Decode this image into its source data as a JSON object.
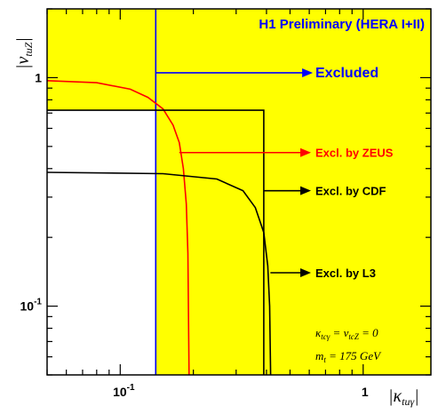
{
  "chart_data": {
    "type": "line",
    "title": "H1 Preliminary (HERA I+II)",
    "xlabel": "|κ_tuγ|",
    "ylabel": "|v_tuZ|",
    "xscale": "log",
    "yscale": "log",
    "xlim": [
      0.05,
      1.9
    ],
    "ylim": [
      0.05,
      2.0
    ],
    "x_tick_labels": [
      {
        "base": "10",
        "exp": "-1",
        "value": 0.1
      },
      {
        "base": "1",
        "exp": "",
        "value": 1
      }
    ],
    "y_tick_labels": [
      {
        "base": "1",
        "exp": "",
        "value": 1
      },
      {
        "base": "10",
        "exp": "-1",
        "value": 0.1
      }
    ],
    "regions": [
      {
        "name": "Excluded",
        "color": "#ffff00"
      }
    ],
    "series": [
      {
        "name": "H1 limit",
        "color": "#0000ff",
        "points": [
          [
            0.14,
            0.05
          ],
          [
            0.14,
            2.0
          ]
        ]
      },
      {
        "name": "ZEUS",
        "color": "#ff0000",
        "points": [
          [
            0.05,
            0.97
          ],
          [
            0.08,
            0.95
          ],
          [
            0.11,
            0.89
          ],
          [
            0.13,
            0.82
          ],
          [
            0.15,
            0.73
          ],
          [
            0.165,
            0.62
          ],
          [
            0.175,
            0.52
          ],
          [
            0.182,
            0.4
          ],
          [
            0.187,
            0.28
          ],
          [
            0.19,
            0.17
          ],
          [
            0.192,
            0.05
          ]
        ]
      },
      {
        "name": "L3",
        "color": "#000000",
        "points": [
          [
            0.05,
            0.72
          ],
          [
            0.39,
            0.72
          ],
          [
            0.39,
            0.05
          ]
        ]
      },
      {
        "name": "CDF",
        "color": "#000000",
        "points": [
          [
            0.05,
            0.385
          ],
          [
            0.15,
            0.38
          ],
          [
            0.25,
            0.36
          ],
          [
            0.32,
            0.32
          ],
          [
            0.36,
            0.27
          ],
          [
            0.39,
            0.21
          ],
          [
            0.405,
            0.15
          ],
          [
            0.412,
            0.1
          ],
          [
            0.416,
            0.05
          ]
        ]
      }
    ],
    "annotations": [
      {
        "text": "Excluded",
        "color": "#0000ff",
        "arrow_from": [
          0.14,
          1.05
        ],
        "arrow_to": [
          0.58,
          1.05
        ],
        "label_at": [
          0.62,
          1.05
        ]
      },
      {
        "text": "Excl. by ZEUS",
        "color": "#ff0000",
        "arrow_from": [
          0.175,
          0.47
        ],
        "arrow_to": [
          0.57,
          0.47
        ],
        "label_at": [
          0.62,
          0.47
        ]
      },
      {
        "text": "Excl. by CDF",
        "color": "#000000",
        "arrow_from": [
          0.39,
          0.32
        ],
        "arrow_to": [
          0.57,
          0.32
        ],
        "label_at": [
          0.62,
          0.32
        ]
      },
      {
        "text": "Excl. by L3",
        "color": "#000000",
        "arrow_from": [
          0.415,
          0.14
        ],
        "arrow_to": [
          0.57,
          0.14
        ],
        "label_at": [
          0.62,
          0.14
        ]
      }
    ],
    "notes": [
      "κ_tcγ = v_tcZ = 0",
      "m_t = 175 GeV"
    ],
    "grid": false,
    "legend": "none"
  }
}
